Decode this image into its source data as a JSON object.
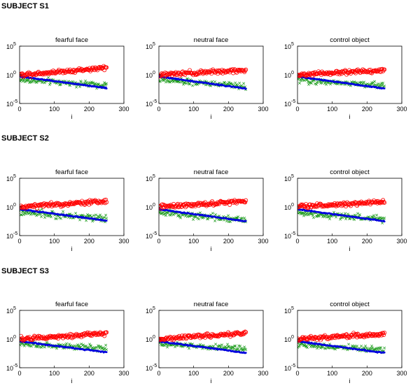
{
  "subjects": [
    {
      "label": "SUBJECT S1"
    },
    {
      "label": "SUBJECT S2"
    },
    {
      "label": "SUBJECT S3"
    }
  ],
  "colors": {
    "red_circles": "#ff0000",
    "green_crosses": "#1a9a1a",
    "blue_points": "#0000dd"
  },
  "chart_data": [
    {
      "subject": "SUBJECT S1",
      "type": "scatter",
      "title": "fearful face",
      "xlabel": "i",
      "ylabel": "",
      "xlim": [
        0,
        300
      ],
      "ylim_log10": [
        -5,
        5
      ],
      "yscale": "log",
      "xticks": [
        0,
        100,
        200,
        300
      ],
      "yticks": [
        "10^-5",
        "10^0",
        "10^5"
      ],
      "series": [
        {
          "name": "red circles",
          "marker": "o",
          "x_range": [
            0,
            250
          ],
          "log10_start": 0.0,
          "log10_end": 1.2,
          "spread": 0.6
        },
        {
          "name": "green crosses",
          "marker": "x",
          "x_range": [
            0,
            250
          ],
          "log10_start": -0.9,
          "log10_end": -1.8,
          "spread": 0.9
        },
        {
          "name": "blue points",
          "marker": ".",
          "x_range": [
            0,
            250
          ],
          "log10_start": -0.3,
          "log10_end": -2.3,
          "spread": 0.15
        }
      ]
    },
    {
      "subject": "SUBJECT S1",
      "type": "scatter",
      "title": "neutral face",
      "xlabel": "i",
      "ylabel": "",
      "xlim": [
        0,
        300
      ],
      "ylim_log10": [
        -5,
        5
      ],
      "yscale": "log",
      "xticks": [
        0,
        100,
        200,
        300
      ],
      "yticks": [
        "10^-5",
        "10^0",
        "10^5"
      ],
      "series": [
        {
          "name": "red circles",
          "marker": "o",
          "x_range": [
            0,
            250
          ],
          "log10_start": 0.0,
          "log10_end": 0.8,
          "spread": 0.6
        },
        {
          "name": "green crosses",
          "marker": "x",
          "x_range": [
            0,
            250
          ],
          "log10_start": -0.9,
          "log10_end": -2.0,
          "spread": 0.9
        },
        {
          "name": "blue points",
          "marker": ".",
          "x_range": [
            0,
            250
          ],
          "log10_start": -0.3,
          "log10_end": -2.4,
          "spread": 0.15
        }
      ]
    },
    {
      "subject": "SUBJECT S1",
      "type": "scatter",
      "title": "control object",
      "xlabel": "i",
      "ylabel": "",
      "xlim": [
        0,
        300
      ],
      "ylim_log10": [
        -5,
        5
      ],
      "yscale": "log",
      "xticks": [
        0,
        100,
        200,
        300
      ],
      "yticks": [
        "10^-5",
        "10^0",
        "10^5"
      ],
      "series": [
        {
          "name": "red circles",
          "marker": "o",
          "x_range": [
            0,
            250
          ],
          "log10_start": 0.0,
          "log10_end": 0.8,
          "spread": 0.6
        },
        {
          "name": "green crosses",
          "marker": "x",
          "x_range": [
            0,
            250
          ],
          "log10_start": -0.9,
          "log10_end": -1.9,
          "spread": 0.9
        },
        {
          "name": "blue points",
          "marker": ".",
          "x_range": [
            0,
            250
          ],
          "log10_start": -0.3,
          "log10_end": -2.4,
          "spread": 0.15
        }
      ]
    },
    {
      "subject": "SUBJECT S2",
      "type": "scatter",
      "title": "fearful face",
      "xlabel": "i",
      "ylabel": "",
      "xlim": [
        0,
        300
      ],
      "ylim_log10": [
        -5,
        5
      ],
      "yscale": "log",
      "xticks": [
        0,
        100,
        200,
        300
      ],
      "yticks": [
        "10^-5",
        "10^0",
        "10^5"
      ],
      "series": [
        {
          "name": "red circles",
          "marker": "o",
          "x_range": [
            0,
            250
          ],
          "log10_start": 0.0,
          "log10_end": 1.0,
          "spread": 0.6
        },
        {
          "name": "green crosses",
          "marker": "x",
          "x_range": [
            0,
            250
          ],
          "log10_start": -1.0,
          "log10_end": -2.0,
          "spread": 1.0
        },
        {
          "name": "blue points",
          "marker": ".",
          "x_range": [
            0,
            250
          ],
          "log10_start": -0.4,
          "log10_end": -2.4,
          "spread": 0.15
        }
      ]
    },
    {
      "subject": "SUBJECT S2",
      "type": "scatter",
      "title": "neutral face",
      "xlabel": "i",
      "ylabel": "",
      "xlim": [
        0,
        300
      ],
      "ylim_log10": [
        -5,
        5
      ],
      "yscale": "log",
      "xticks": [
        0,
        100,
        200,
        300
      ],
      "yticks": [
        "10^-5",
        "10^0",
        "10^5"
      ],
      "series": [
        {
          "name": "red circles",
          "marker": "o",
          "x_range": [
            0,
            250
          ],
          "log10_start": 0.0,
          "log10_end": 1.0,
          "spread": 0.6
        },
        {
          "name": "green crosses",
          "marker": "x",
          "x_range": [
            0,
            250
          ],
          "log10_start": -1.0,
          "log10_end": -2.2,
          "spread": 1.0
        },
        {
          "name": "blue points",
          "marker": ".",
          "x_range": [
            0,
            250
          ],
          "log10_start": -0.4,
          "log10_end": -2.5,
          "spread": 0.15
        }
      ]
    },
    {
      "subject": "SUBJECT S2",
      "type": "scatter",
      "title": "control object",
      "xlabel": "i",
      "ylabel": "",
      "xlim": [
        0,
        300
      ],
      "ylim_log10": [
        -5,
        5
      ],
      "yscale": "log",
      "xticks": [
        0,
        100,
        200,
        300
      ],
      "yticks": [
        "10^-5",
        "10^0",
        "10^5"
      ],
      "series": [
        {
          "name": "red circles",
          "marker": "o",
          "x_range": [
            0,
            250
          ],
          "log10_start": 0.0,
          "log10_end": 0.9,
          "spread": 0.6
        },
        {
          "name": "green crosses",
          "marker": "x",
          "x_range": [
            0,
            250
          ],
          "log10_start": -1.0,
          "log10_end": -2.1,
          "spread": 1.0
        },
        {
          "name": "blue points",
          "marker": ".",
          "x_range": [
            0,
            250
          ],
          "log10_start": -0.4,
          "log10_end": -2.5,
          "spread": 0.15
        }
      ]
    },
    {
      "subject": "SUBJECT S3",
      "type": "scatter",
      "title": "fearful face",
      "xlabel": "i",
      "ylabel": "",
      "xlim": [
        0,
        300
      ],
      "ylim_log10": [
        -5,
        5
      ],
      "yscale": "log",
      "xticks": [
        0,
        100,
        200,
        300
      ],
      "yticks": [
        "10^-5",
        "10^0",
        "10^5"
      ],
      "series": [
        {
          "name": "red circles",
          "marker": "o",
          "x_range": [
            0,
            250
          ],
          "log10_start": 0.0,
          "log10_end": 1.0,
          "spread": 0.6
        },
        {
          "name": "green crosses",
          "marker": "x",
          "x_range": [
            0,
            250
          ],
          "log10_start": -0.9,
          "log10_end": -1.6,
          "spread": 0.9
        },
        {
          "name": "blue points",
          "marker": ".",
          "x_range": [
            0,
            250
          ],
          "log10_start": -0.4,
          "log10_end": -2.3,
          "spread": 0.15
        }
      ]
    },
    {
      "subject": "SUBJECT S3",
      "type": "scatter",
      "title": "neutral face",
      "xlabel": "i",
      "ylabel": "",
      "xlim": [
        0,
        300
      ],
      "ylim_log10": [
        -5,
        5
      ],
      "yscale": "log",
      "xticks": [
        0,
        100,
        200,
        300
      ],
      "yticks": [
        "10^-5",
        "10^0",
        "10^5"
      ],
      "series": [
        {
          "name": "red circles",
          "marker": "o",
          "x_range": [
            0,
            250
          ],
          "log10_start": 0.0,
          "log10_end": 1.0,
          "spread": 0.6
        },
        {
          "name": "green crosses",
          "marker": "x",
          "x_range": [
            0,
            250
          ],
          "log10_start": -0.9,
          "log10_end": -1.7,
          "spread": 0.9
        },
        {
          "name": "blue points",
          "marker": ".",
          "x_range": [
            0,
            250
          ],
          "log10_start": -0.4,
          "log10_end": -2.4,
          "spread": 0.15
        }
      ]
    },
    {
      "subject": "SUBJECT S3",
      "type": "scatter",
      "title": "control object",
      "xlabel": "i",
      "ylabel": "",
      "xlim": [
        0,
        300
      ],
      "ylim_log10": [
        -5,
        5
      ],
      "yscale": "log",
      "xticks": [
        0,
        100,
        200,
        300
      ],
      "yticks": [
        "10^-5",
        "10^0",
        "10^5"
      ],
      "series": [
        {
          "name": "red circles",
          "marker": "o",
          "x_range": [
            0,
            250
          ],
          "log10_start": 0.0,
          "log10_end": 0.9,
          "spread": 0.6
        },
        {
          "name": "green crosses",
          "marker": "x",
          "x_range": [
            0,
            250
          ],
          "log10_start": -0.9,
          "log10_end": -1.9,
          "spread": 0.9
        },
        {
          "name": "blue points",
          "marker": ".",
          "x_range": [
            0,
            250
          ],
          "log10_start": -0.4,
          "log10_end": -2.4,
          "spread": 0.15
        }
      ]
    }
  ]
}
